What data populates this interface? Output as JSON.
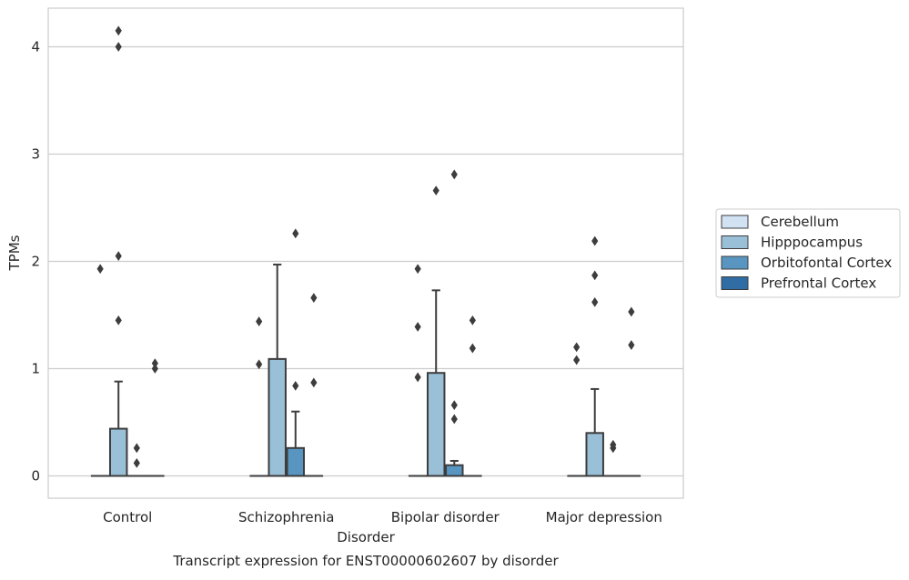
{
  "chart_data": {
    "type": "box",
    "title": "",
    "caption": "Transcript expression for ENST00000602607 by disorder",
    "xlabel": "Disorder",
    "ylabel": "TPMs",
    "ylim": [
      -0.2,
      4.37
    ],
    "yticks": [
      "0",
      "1",
      "2",
      "3",
      "4"
    ],
    "categories": [
      "Control",
      "Schizophrenia",
      "Bipolar disorder",
      "Major depression"
    ],
    "grid": "horizontal",
    "legend_position": "right",
    "series": [
      {
        "name": "Cerebellum",
        "color": "#d1e2f2",
        "boxes": [
          {
            "q1": 0,
            "median": 0,
            "q3": 0,
            "whislo": 0,
            "whishi": 0,
            "fliers": []
          },
          {
            "q1": 0,
            "median": 0,
            "q3": 0,
            "whislo": 0,
            "whishi": 0,
            "fliers": []
          },
          {
            "q1": 0,
            "median": 0,
            "q3": 0,
            "whislo": 0,
            "whishi": 0,
            "fliers": []
          },
          {
            "q1": 0,
            "median": 0,
            "q3": 0,
            "whislo": 0,
            "whishi": 0,
            "fliers": []
          }
        ]
      },
      {
        "name": "Hipppocampus",
        "color": "#9ac0d8",
        "boxes": [
          {
            "q1": 0,
            "median": 0,
            "q3": 0.44,
            "whislo": 0,
            "whishi": 0.88,
            "fliers": [
              4.15,
              4.0,
              2.05,
              1.45
            ]
          },
          {
            "q1": 0,
            "median": 0,
            "q3": 1.09,
            "whislo": 0,
            "whishi": 1.97,
            "fliers": []
          },
          {
            "q1": 0,
            "median": 0,
            "q3": 0.96,
            "whislo": 0,
            "whishi": 1.73,
            "fliers": [
              2.66
            ]
          },
          {
            "q1": 0,
            "median": 0,
            "q3": 0.4,
            "whislo": 0,
            "whishi": 0.81,
            "fliers": [
              2.19,
              1.87,
              1.62
            ]
          }
        ]
      },
      {
        "name": "Orbitofontal Cortex",
        "color": "#5896c1",
        "boxes": [
          {
            "q1": 0,
            "median": 0,
            "q3": 0,
            "whislo": 0,
            "whishi": 0,
            "fliers": [
              0.26,
              0.12
            ]
          },
          {
            "q1": 0,
            "median": 0,
            "q3": 0.26,
            "whislo": 0,
            "whishi": 0.6,
            "fliers": [
              2.26,
              0.84
            ]
          },
          {
            "q1": 0,
            "median": 0,
            "q3": 0.1,
            "whislo": 0,
            "whishi": 0.14,
            "fliers": [
              2.81,
              0.66,
              0.53
            ]
          },
          {
            "q1": 0,
            "median": 0,
            "q3": 0,
            "whislo": 0,
            "whishi": 0,
            "fliers": [
              0.29,
              0.26
            ]
          }
        ]
      },
      {
        "name": "Prefrontal Cortex",
        "color": "#2f6da4",
        "boxes": [
          {
            "q1": 0,
            "median": 0,
            "q3": 0,
            "whislo": 0,
            "whishi": 0,
            "fliers": [
              1.05,
              1.0
            ]
          },
          {
            "q1": 0,
            "median": 0,
            "q3": 0,
            "whislo": 0,
            "whishi": 0,
            "fliers": [
              1.66,
              0.87
            ]
          },
          {
            "q1": 0,
            "median": 0,
            "q3": 0,
            "whislo": 0,
            "whishi": 0,
            "fliers": [
              1.45,
              1.19
            ]
          },
          {
            "q1": 0,
            "median": 0,
            "q3": 0,
            "whislo": 0,
            "whishi": 0,
            "fliers": [
              1.53,
              1.22
            ]
          }
        ]
      }
    ],
    "extra_fliers_left": [
      {
        "category": 0,
        "values": [
          1.93
        ]
      },
      {
        "category": 1,
        "values": [
          1.44,
          1.04
        ]
      },
      {
        "category": 2,
        "values": [
          1.93,
          1.39,
          0.92
        ]
      },
      {
        "category": 3,
        "values": [
          1.2,
          1.08
        ]
      }
    ]
  }
}
